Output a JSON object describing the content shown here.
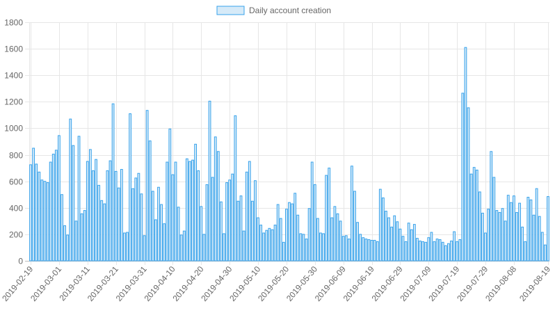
{
  "chart_data": {
    "type": "bar",
    "series": [
      {
        "name": "Daily account creation",
        "fill": "#d6eaf8",
        "stroke": "#36a2eb",
        "values": [
          725,
          850,
          730,
          670,
          610,
          600,
          590,
          745,
          805,
          835,
          945,
          500,
          265,
          195,
          1070,
          870,
          300,
          940,
          355,
          380,
          750,
          840,
          680,
          765,
          570,
          455,
          430,
          680,
          755,
          1185,
          675,
          550,
          690,
          210,
          215,
          1110,
          545,
          625,
          660,
          505,
          190,
          1135,
          905,
          525,
          310,
          555,
          425,
          280,
          745,
          995,
          650,
          745,
          405,
          195,
          225,
          770,
          750,
          760,
          880,
          680,
          410,
          200,
          575,
          1205,
          630,
          935,
          825,
          445,
          205,
          590,
          610,
          655,
          1095,
          450,
          490,
          225,
          670,
          750,
          450,
          605,
          325,
          270,
          210,
          230,
          245,
          235,
          270,
          425,
          320,
          140,
          390,
          440,
          430,
          510,
          345,
          205,
          200,
          165,
          395,
          745,
          575,
          320,
          210,
          205,
          645,
          700,
          325,
          410,
          355,
          300,
          185,
          190,
          165,
          715,
          525,
          290,
          200,
          175,
          165,
          160,
          155,
          155,
          145,
          540,
          475,
          375,
          325,
          255,
          340,
          295,
          240,
          185,
          145,
          285,
          235,
          275,
          170,
          150,
          145,
          140,
          175,
          215,
          145,
          165,
          160,
          140,
          115,
          130,
          150,
          220,
          145,
          160,
          1265,
          1610,
          1155,
          655,
          705,
          685,
          520,
          360,
          210,
          390,
          825,
          630,
          380,
          365,
          395,
          300,
          495,
          440,
          490,
          365,
          435,
          255,
          145,
          480,
          460,
          345,
          545,
          335,
          215,
          120,
          485
        ]
      }
    ],
    "x_labels": [
      "2019-02-19",
      "2019-03-01",
      "2019-03-11",
      "2019-03-21",
      "2019-03-31",
      "2019-04-10",
      "2019-04-20",
      "2019-04-30",
      "2019-05-10",
      "2019-05-20",
      "2019-05-30",
      "2019-06-09",
      "2019-06-19",
      "2019-06-29",
      "2019-07-09",
      "2019-07-19",
      "2019-07-29",
      "2019-08-08",
      "2019-08-19"
    ],
    "y_ticks": [
      0,
      200,
      400,
      600,
      800,
      1000,
      1200,
      1400,
      1600,
      1800
    ],
    "ylim": [
      0,
      1800
    ],
    "xlabel": "",
    "ylabel": "",
    "grid": true,
    "legend_position": "top-center",
    "colors": {
      "grid": "#e6e6e6",
      "tick_text": "#666666"
    }
  }
}
